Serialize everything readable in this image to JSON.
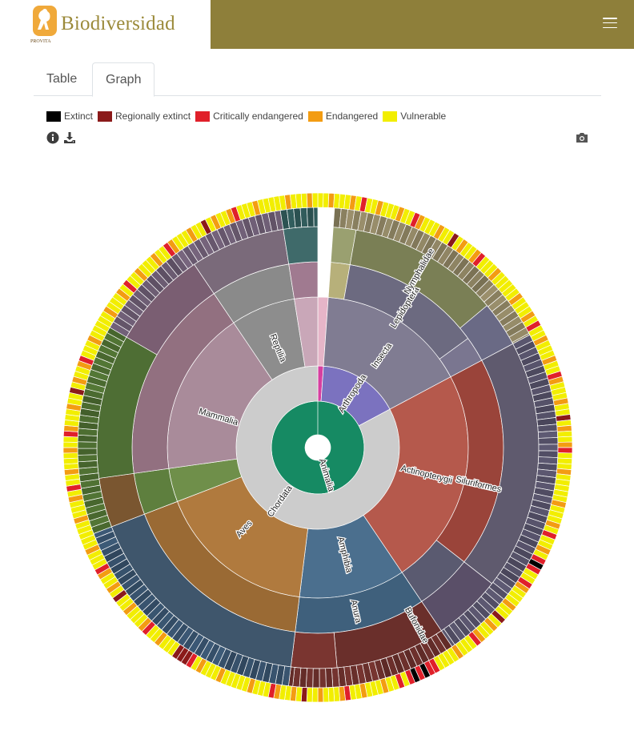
{
  "header": {
    "brand": "Biodiversidad",
    "logo_small_text": "PROVITA",
    "menu_icon": "hamburger-menu-icon",
    "accent_color": "#8e7f3a"
  },
  "tabs": [
    {
      "label": "Table",
      "active": false
    },
    {
      "label": "Graph",
      "active": true
    }
  ],
  "legend": [
    {
      "label": "Extinct",
      "color": "#000000"
    },
    {
      "label": "Regionally extinct",
      "color": "#8b1a1a"
    },
    {
      "label": "Critically endangered",
      "color": "#e0202a"
    },
    {
      "label": "Endangered",
      "color": "#f39c12"
    },
    {
      "label": "Vulnerable",
      "color": "#f2ee00"
    }
  ],
  "toolbar": {
    "info_icon": "info-circle-icon",
    "download_icon": "download-icon",
    "camera_icon": "camera-icon"
  },
  "chart_data": {
    "type": "sunburst",
    "root": "Animalia",
    "labeled_nodes": [
      {
        "name": "Animalia",
        "level": 1,
        "color": "#168a63"
      },
      {
        "name": "Chordata",
        "level": 2,
        "color": "#cccccc"
      },
      {
        "name": "Arthropoda",
        "level": 2,
        "color": "#7b72bf"
      },
      {
        "name": "Mammalia",
        "level": 3,
        "color": "#a98b9a"
      },
      {
        "name": "Reptilia",
        "level": 3,
        "color": "#8d8d8d"
      },
      {
        "name": "Aves",
        "level": 3,
        "color": "#b07a3e"
      },
      {
        "name": "Amphibia",
        "level": 3,
        "color": "#4b6f8e"
      },
      {
        "name": "Actinopterygii",
        "level": 3,
        "color": "#b5594c"
      },
      {
        "name": "Insecta",
        "level": 3,
        "color": "#807c92"
      },
      {
        "name": "Lepidoptera",
        "level": 4,
        "color": "#6c6a80"
      },
      {
        "name": "Siluriformes",
        "level": 4,
        "color": "#9a443a"
      },
      {
        "name": "Anura",
        "level": 4,
        "color": "#3f607c"
      },
      {
        "name": "Nymphalidae",
        "level": 5,
        "color": "#7a7f55"
      },
      {
        "name": "Bufonidae",
        "level": 5,
        "color": "#6a2f2b"
      }
    ],
    "outer_ring": "conservation status per species (Extinct, Regionally extinct, Critically endangered, Endangered, Vulnerable)"
  }
}
